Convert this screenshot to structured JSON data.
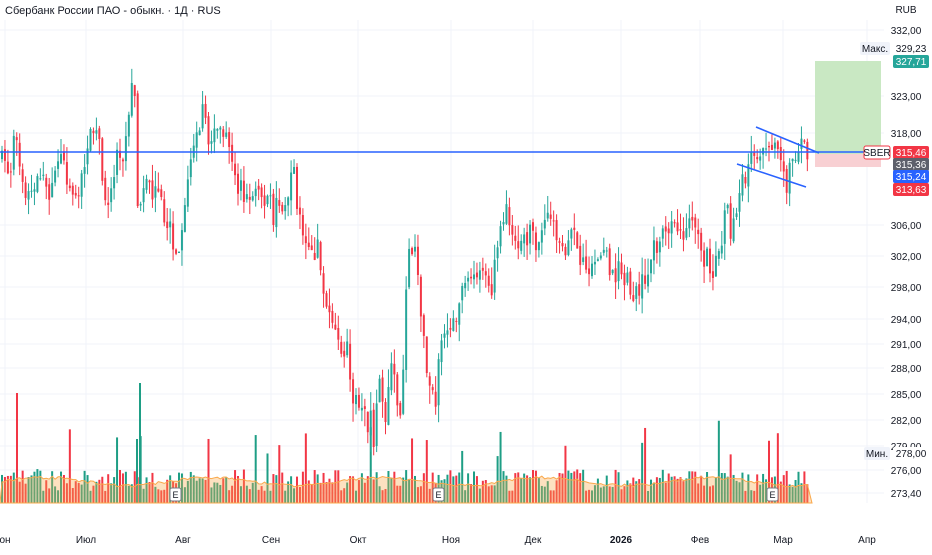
{
  "header": {
    "title": "Сбербанк России ПАО - обыкн. · 1Д · RUS",
    "currency": "RUB"
  },
  "colors": {
    "up": "#26a69a",
    "down": "#f23645",
    "volume_up": "#1e9e85",
    "volume_down": "#f23645",
    "volume_ma": "#f9a84b",
    "level_line": "#2962ff",
    "pattern_lines": "#2962ff",
    "profit_zone": "#c9e8c3",
    "loss_zone": "#f8d0d3",
    "grid": "#f0f3fa"
  },
  "chart_data": {
    "type": "candlestick",
    "symbol_label": "SBER",
    "y_axis_ticks": [
      "332,00",
      "329,23",
      "327,71",
      "323,00",
      "318,00",
      "315,46",
      "315,36",
      "315,24",
      "313,63",
      "306,00",
      "302,00",
      "298,00",
      "294,00",
      "291,00",
      "288,00",
      "285,00",
      "282,00",
      "279,00",
      "278,00",
      "276,00",
      "273,40"
    ],
    "price_scale": {
      "ticks": [
        332.0,
        323.0,
        318.0,
        306.0,
        302.0,
        298.0,
        294.0,
        291.0,
        288.0,
        285.0,
        282.0,
        279.0,
        276.0,
        273.4
      ]
    },
    "x_axis_labels": [
      "он",
      "Июл",
      "Авг",
      "Сен",
      "Окт",
      "Ноя",
      "Дек",
      "2026",
      "Фев",
      "Мар",
      "Апр"
    ],
    "markers": {
      "max_label": "Макс.",
      "max_value": "329,23",
      "min_label": "Мин.",
      "min_value": "278,00"
    },
    "price_badges": {
      "target": "327,71",
      "sber_label": "SBER",
      "last": "315,46",
      "level_a": "315,36",
      "level_b": "315,24",
      "stop": "313,63"
    },
    "level_line": 315.46,
    "earnings_marker": "E",
    "earnings_count": 3,
    "trend": [
      [
        0,
        315
      ],
      [
        6,
        314
      ],
      [
        10,
        312
      ],
      [
        14,
        315
      ],
      [
        18,
        318
      ],
      [
        22,
        314
      ],
      [
        26,
        311
      ],
      [
        30,
        309
      ],
      [
        34,
        310
      ],
      [
        40,
        313
      ],
      [
        46,
        311
      ],
      [
        52,
        310
      ],
      [
        58,
        313
      ],
      [
        64,
        315
      ],
      [
        68,
        312
      ],
      [
        72,
        310
      ],
      [
        76,
        308
      ],
      [
        80,
        309
      ],
      [
        84,
        313
      ],
      [
        88,
        316
      ],
      [
        92,
        320
      ],
      [
        96,
        319
      ],
      [
        100,
        317
      ],
      [
        104,
        313
      ],
      [
        108,
        310
      ],
      [
        112,
        309
      ],
      [
        116,
        312
      ],
      [
        120,
        315
      ],
      [
        124,
        312
      ],
      [
        128,
        318
      ],
      [
        132,
        322
      ],
      [
        136,
        327
      ],
      [
        140,
        306
      ],
      [
        144,
        309
      ],
      [
        148,
        312
      ],
      [
        152,
        310
      ],
      [
        156,
        311
      ],
      [
        160,
        309
      ],
      [
        164,
        308
      ],
      [
        168,
        306
      ],
      [
        172,
        305
      ],
      [
        176,
        304
      ],
      [
        180,
        303
      ],
      [
        184,
        306
      ],
      [
        188,
        309
      ],
      [
        192,
        313
      ],
      [
        196,
        315
      ],
      [
        200,
        318
      ],
      [
        204,
        321
      ],
      [
        208,
        319
      ],
      [
        212,
        316
      ],
      [
        216,
        318
      ],
      [
        220,
        320
      ],
      [
        224,
        318
      ],
      [
        228,
        317
      ],
      [
        232,
        314
      ],
      [
        236,
        312
      ],
      [
        240,
        310
      ],
      [
        244,
        311
      ],
      [
        248,
        310
      ],
      [
        252,
        309
      ],
      [
        256,
        311
      ],
      [
        260,
        310
      ],
      [
        264,
        311
      ],
      [
        268,
        308
      ],
      [
        272,
        309
      ],
      [
        276,
        307
      ],
      [
        280,
        309
      ],
      [
        284,
        309
      ],
      [
        288,
        310
      ],
      [
        292,
        311
      ],
      [
        296,
        313
      ],
      [
        300,
        308
      ],
      [
        304,
        305
      ],
      [
        308,
        302
      ],
      [
        312,
        303
      ],
      [
        316,
        301
      ],
      [
        320,
        303
      ],
      [
        324,
        299
      ],
      [
        328,
        295
      ],
      [
        332,
        296
      ],
      [
        336,
        293
      ],
      [
        340,
        291
      ],
      [
        344,
        290
      ],
      [
        348,
        291
      ],
      [
        352,
        287
      ],
      [
        356,
        285
      ],
      [
        360,
        283
      ],
      [
        364,
        285
      ],
      [
        368,
        281
      ],
      [
        372,
        283
      ],
      [
        376,
        280
      ],
      [
        380,
        286
      ],
      [
        384,
        284
      ],
      [
        388,
        282
      ],
      [
        392,
        288
      ],
      [
        396,
        286
      ],
      [
        400,
        283
      ],
      [
        404,
        283
      ],
      [
        408,
        298
      ],
      [
        412,
        303
      ],
      [
        416,
        303
      ],
      [
        420,
        299
      ],
      [
        424,
        293
      ],
      [
        428,
        289
      ],
      [
        432,
        286
      ],
      [
        436,
        283
      ],
      [
        440,
        288
      ],
      [
        444,
        292
      ],
      [
        448,
        291
      ],
      [
        452,
        294
      ],
      [
        456,
        294
      ],
      [
        460,
        296
      ],
      [
        464,
        297
      ],
      [
        468,
        297
      ],
      [
        472,
        299
      ],
      [
        476,
        300
      ],
      [
        480,
        300
      ],
      [
        484,
        301
      ],
      [
        488,
        298
      ],
      [
        492,
        296
      ],
      [
        496,
        300
      ],
      [
        500,
        303
      ],
      [
        504,
        307
      ],
      [
        508,
        308
      ],
      [
        512,
        307
      ],
      [
        516,
        305
      ],
      [
        520,
        303
      ],
      [
        524,
        303
      ],
      [
        528,
        304
      ],
      [
        532,
        306
      ],
      [
        536,
        303
      ],
      [
        540,
        305
      ],
      [
        544,
        306
      ],
      [
        548,
        306
      ],
      [
        552,
        306
      ],
      [
        556,
        305
      ],
      [
        560,
        306
      ],
      [
        564,
        304
      ],
      [
        568,
        303
      ],
      [
        572,
        304
      ],
      [
        576,
        304
      ],
      [
        580,
        303
      ],
      [
        584,
        300
      ],
      [
        588,
        301
      ],
      [
        592,
        300
      ],
      [
        596,
        300
      ],
      [
        600,
        303
      ],
      [
        604,
        302
      ],
      [
        608,
        302
      ],
      [
        612,
        300
      ],
      [
        616,
        299
      ],
      [
        620,
        301
      ],
      [
        624,
        300
      ],
      [
        628,
        299
      ],
      [
        632,
        297
      ],
      [
        636,
        298
      ],
      [
        640,
        297
      ],
      [
        644,
        299
      ],
      [
        648,
        299
      ],
      [
        652,
        302
      ],
      [
        656,
        303
      ],
      [
        660,
        304
      ],
      [
        664,
        306
      ],
      [
        668,
        306
      ],
      [
        672,
        305
      ],
      [
        676,
        306
      ],
      [
        680,
        304
      ],
      [
        684,
        305
      ],
      [
        688,
        306
      ],
      [
        692,
        306
      ],
      [
        696,
        305
      ],
      [
        700,
        305
      ],
      [
        704,
        302
      ],
      [
        708,
        302
      ],
      [
        712,
        301
      ],
      [
        716,
        300
      ],
      [
        720,
        301
      ],
      [
        724,
        303
      ],
      [
        728,
        309
      ],
      [
        732,
        305
      ],
      [
        736,
        307
      ],
      [
        740,
        310
      ],
      [
        744,
        311
      ],
      [
        748,
        313
      ],
      [
        752,
        314
      ],
      [
        756,
        315
      ],
      [
        760,
        315
      ],
      [
        764,
        316
      ],
      [
        768,
        317
      ],
      [
        772,
        316
      ],
      [
        776,
        316
      ],
      [
        780,
        315
      ],
      [
        784,
        313
      ],
      [
        788,
        311
      ],
      [
        792,
        313
      ],
      [
        796,
        314
      ],
      [
        800,
        316
      ],
      [
        804,
        316
      ],
      [
        808,
        316
      ]
    ],
    "volume_scale": "relative",
    "xlim": [
      0,
      932
    ],
    "ylim": [
      273.4,
      332.0
    ]
  }
}
